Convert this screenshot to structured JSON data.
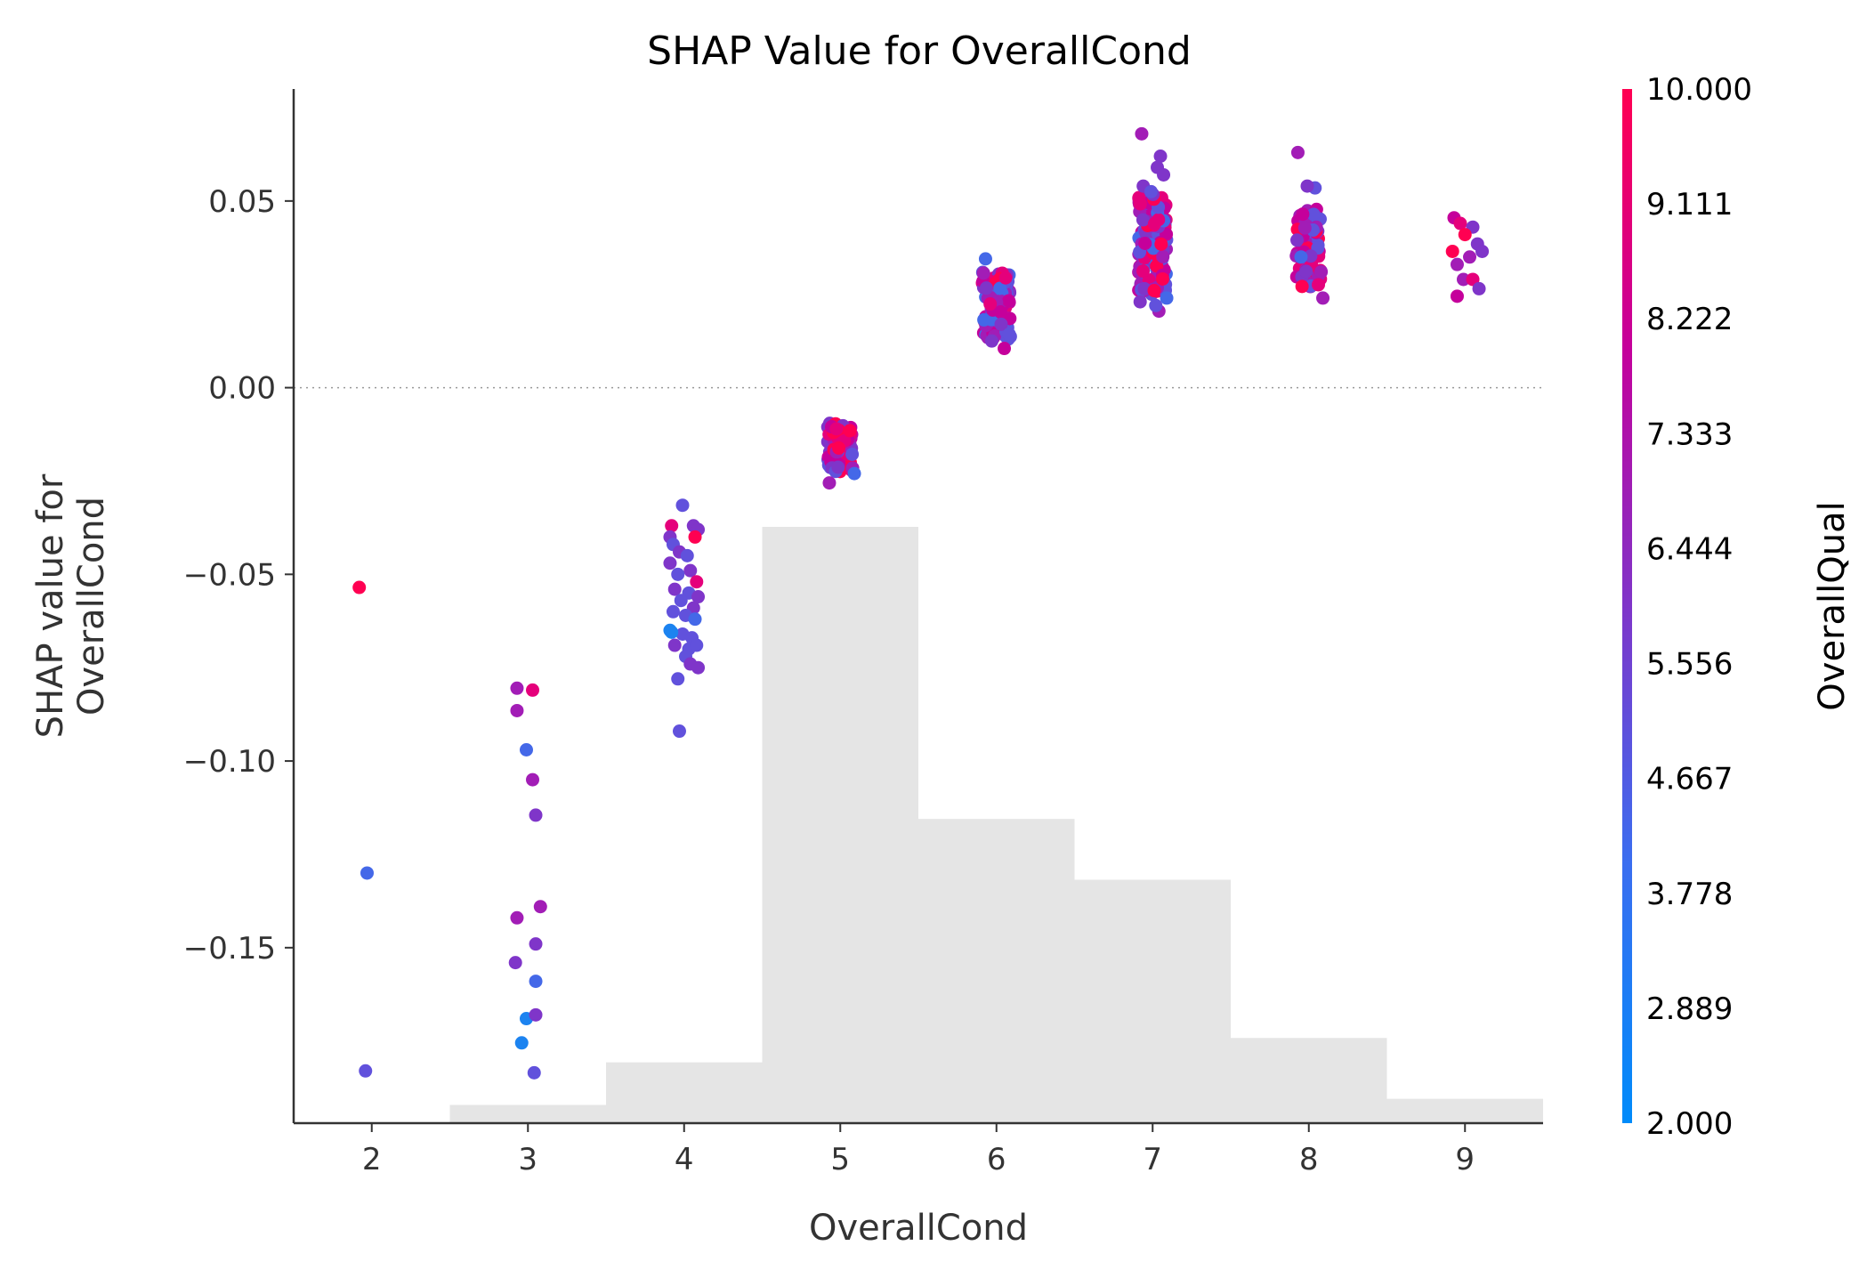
{
  "chart_data": {
    "type": "scatter",
    "title": "SHAP Value for OverallCond",
    "xlabel": "OverallCond",
    "ylabel": "SHAP value for\nOverallCond",
    "xlim": [
      1.5,
      9.5
    ],
    "ylim": [
      -0.197,
      0.08
    ],
    "x_ticks": [
      2,
      3,
      4,
      5,
      6,
      7,
      8,
      9
    ],
    "y_ticks": [
      0.05,
      0.0,
      -0.05,
      -0.1,
      -0.15
    ],
    "y_tick_labels": [
      "0.05",
      "0.00",
      "−0.05",
      "−0.10",
      "−0.15"
    ],
    "zero_line": true,
    "grid": false,
    "colorbar": {
      "title": "OverallQual",
      "min": 2.0,
      "max": 10.0,
      "tick_labels": [
        "10.000",
        "9.111",
        "8.222",
        "7.333",
        "6.444",
        "5.556",
        "4.667",
        "3.778",
        "2.889",
        "2.000"
      ],
      "colors": [
        "#ff0052",
        "#e5007b",
        "#c5009b",
        "#a21db6",
        "#7f35c9",
        "#6151dc",
        "#4468e8",
        "#1c83f0",
        "#008bfa"
      ]
    },
    "histogram": {
      "bins": [
        2,
        3,
        4,
        5,
        6,
        7,
        8,
        9
      ],
      "counts": [
        0,
        3,
        10,
        98,
        50,
        40,
        14,
        4
      ]
    },
    "series": [
      {
        "points": [
          [
            1.92,
            -0.0535,
            10.0
          ],
          [
            1.97,
            -0.13,
            4.5
          ],
          [
            1.96,
            -0.183,
            5.5
          ],
          [
            2.93,
            -0.0805,
            6.8
          ],
          [
            3.03,
            -0.081,
            9.5
          ],
          [
            2.93,
            -0.0865,
            6.7
          ],
          [
            2.99,
            -0.097,
            4.5
          ],
          [
            3.03,
            -0.105,
            6.6
          ],
          [
            3.05,
            -0.1145,
            6.0
          ],
          [
            2.93,
            -0.142,
            6.7
          ],
          [
            3.08,
            -0.139,
            6.6
          ],
          [
            2.92,
            -0.154,
            6.0
          ],
          [
            3.05,
            -0.149,
            6.2
          ],
          [
            3.05,
            -0.159,
            4.5
          ],
          [
            2.99,
            -0.169,
            3.0
          ],
          [
            3.05,
            -0.168,
            6.2
          ],
          [
            2.96,
            -0.1755,
            2.9
          ],
          [
            3.04,
            -0.1835,
            5.5
          ],
          [
            3.92,
            -0.037,
            9.5
          ],
          [
            4.06,
            -0.037,
            6.5
          ],
          [
            3.99,
            -0.0315,
            4.6
          ],
          [
            3.91,
            -0.04,
            6.0
          ],
          [
            4.09,
            -0.038,
            6.0
          ],
          [
            4.07,
            -0.04,
            9.8
          ],
          [
            3.93,
            -0.042,
            5.5
          ],
          [
            3.97,
            -0.044,
            6.2
          ],
          [
            4.02,
            -0.045,
            4.6
          ],
          [
            3.91,
            -0.047,
            6.5
          ],
          [
            4.04,
            -0.049,
            6.0
          ],
          [
            3.96,
            -0.05,
            5.2
          ],
          [
            4.08,
            -0.052,
            9.5
          ],
          [
            3.94,
            -0.054,
            6.2
          ],
          [
            4.03,
            -0.055,
            5.2
          ],
          [
            4.09,
            -0.056,
            6.0
          ],
          [
            3.98,
            -0.057,
            4.6
          ],
          [
            4.06,
            -0.059,
            6.0
          ],
          [
            3.93,
            -0.06,
            5.3
          ],
          [
            4.01,
            -0.061,
            4.6
          ],
          [
            4.07,
            -0.062,
            3.8
          ],
          [
            3.91,
            -0.065,
            3.5
          ],
          [
            3.99,
            -0.066,
            5.5
          ],
          [
            4.05,
            -0.067,
            4.6
          ],
          [
            3.94,
            -0.069,
            6.5
          ],
          [
            4.03,
            -0.07,
            5.0
          ],
          [
            4.08,
            -0.069,
            5.5
          ],
          [
            4.01,
            -0.072,
            5.2
          ],
          [
            4.04,
            -0.074,
            5.8
          ],
          [
            4.09,
            -0.075,
            6.0
          ],
          [
            3.96,
            -0.078,
            4.6
          ],
          [
            3.97,
            -0.092,
            4.6
          ],
          [
            3.92,
            -0.0655,
            3.5
          ],
          [
            5.09,
            -0.023,
            3.6
          ],
          [
            4.93,
            -0.0255,
            6.8
          ],
          [
            6.05,
            0.0105,
            8.5
          ],
          [
            5.97,
            0.0125,
            6.0
          ],
          [
            5.93,
            0.0345,
            4.5
          ],
          [
            7.04,
            0.0205,
            7.0
          ],
          [
            7.09,
            0.024,
            4.5
          ],
          [
            7.02,
            0.022,
            5.0
          ],
          [
            6.93,
            0.068,
            6.8
          ],
          [
            7.05,
            0.062,
            6.5
          ],
          [
            7.03,
            0.059,
            6.0
          ],
          [
            7.07,
            0.057,
            6.2
          ],
          [
            6.94,
            0.054,
            6.5
          ],
          [
            6.99,
            0.0525,
            4.6
          ],
          [
            7.01,
            0.026,
            9.8
          ],
          [
            6.92,
            0.023,
            6.0
          ],
          [
            7.93,
            0.063,
            6.7
          ],
          [
            8.04,
            0.0535,
            5.5
          ],
          [
            7.99,
            0.054,
            6.5
          ],
          [
            8.09,
            0.024,
            7.0
          ],
          [
            7.95,
            0.035,
            3.8
          ],
          [
            8.93,
            0.0455,
            8.0
          ],
          [
            8.97,
            0.044,
            9.5
          ],
          [
            9.05,
            0.043,
            6.0
          ],
          [
            9.0,
            0.041,
            9.8
          ],
          [
            8.92,
            0.0365,
            9.8
          ],
          [
            9.08,
            0.0385,
            6.4
          ],
          [
            9.11,
            0.0365,
            6.0
          ],
          [
            9.03,
            0.035,
            7.0
          ],
          [
            8.95,
            0.033,
            7.5
          ],
          [
            8.99,
            0.029,
            7.0
          ],
          [
            9.05,
            0.029,
            9.5
          ],
          [
            9.09,
            0.0265,
            6.3
          ],
          [
            8.95,
            0.0245,
            8.5
          ]
        ],
        "clusters": [
          {
            "x": 5,
            "jitter": 0.08,
            "ymin": -0.0225,
            "ymax": -0.0095,
            "n": 95,
            "qmin": 5.0,
            "qmax": 10.0
          },
          {
            "x": 6,
            "jitter": 0.09,
            "ymin": 0.013,
            "ymax": 0.031,
            "n": 120,
            "qmin": 4.0,
            "qmax": 10.0
          },
          {
            "x": 7,
            "jitter": 0.09,
            "ymin": 0.025,
            "ymax": 0.052,
            "n": 160,
            "qmin": 4.0,
            "qmax": 10.0
          },
          {
            "x": 8,
            "jitter": 0.08,
            "ymin": 0.027,
            "ymax": 0.048,
            "n": 70,
            "qmin": 4.5,
            "qmax": 10.0
          }
        ]
      }
    ]
  }
}
